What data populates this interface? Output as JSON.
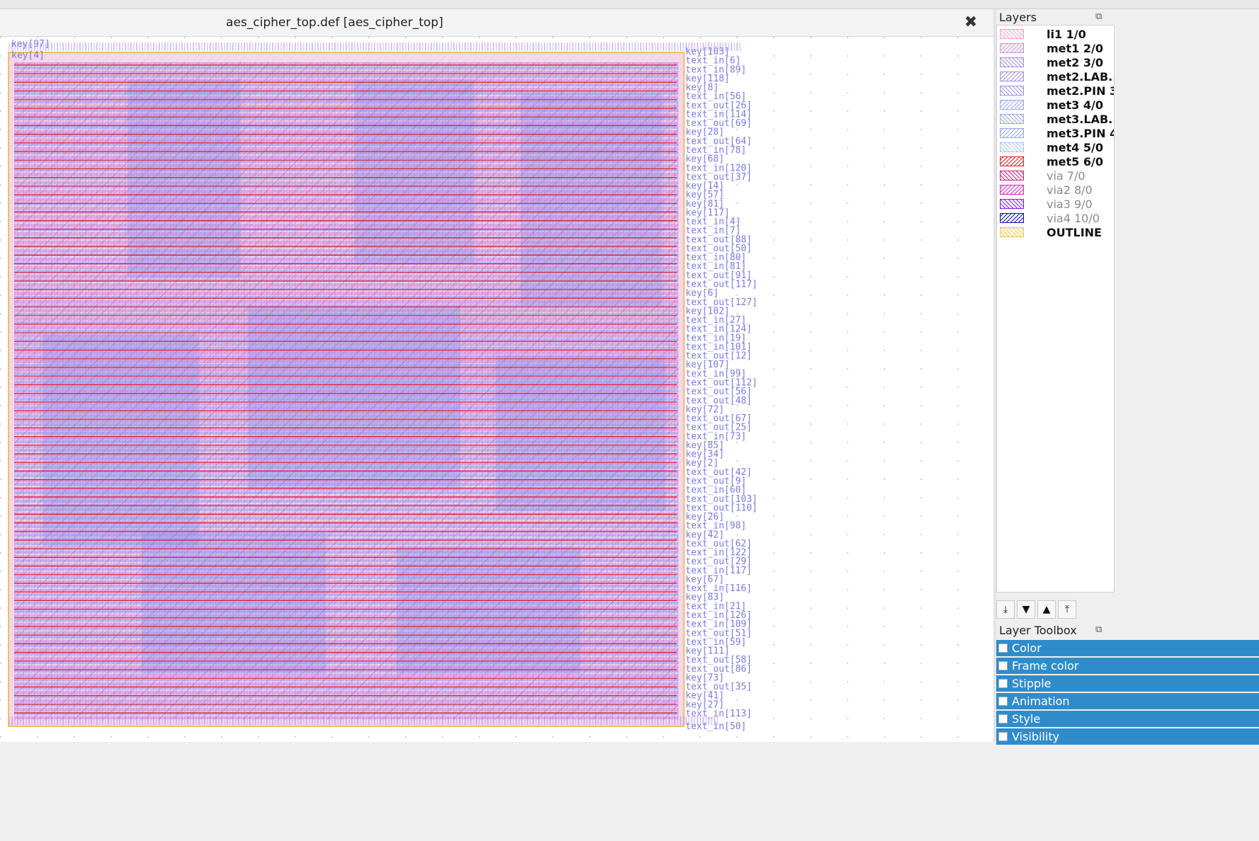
{
  "view": {
    "title": "aes_cipher_top.def [aes_cipher_top]",
    "close_icon": "close-icon",
    "top_labels": [
      "key[97]",
      "key[4]"
    ],
    "bottom_label": "text_in[50]",
    "pin_labels": [
      "key[103]",
      "text_in[6]",
      "text_in[89]",
      "key[118]",
      "key[8]",
      "text_in[56]",
      "text_out[26]",
      "text_in[114]",
      "text_out[69]",
      "key[28]",
      "text_out[64]",
      "text_in[78]",
      "key[68]",
      "text_in[120]",
      "text_out[37]",
      "key[14]",
      "key[57]",
      "key[81]",
      "key[117]",
      "text_in[4]",
      "text_in[7]",
      "text_out[88]",
      "text_out[50]",
      "text_in[80]",
      "text_in[81]",
      "text_out[91]",
      "text_out[117]",
      "key[6]",
      "text_out[127]",
      "key[102]",
      "text_in[27]",
      "text_in[124]",
      "text_in[19]",
      "text_in[101]",
      "text_out[12]",
      "key[107]",
      "text_in[99]",
      "text_out[112]",
      "text_out[56]",
      "text_out[48]",
      "key[72]",
      "text_out[67]",
      "text_out[25]",
      "text_in[73]",
      "key[85]",
      "key[34]",
      "key[2]",
      "text_out[42]",
      "text_out[9]",
      "text_in[60]",
      "text_out[103]",
      "text_out[110]",
      "key[26]",
      "text_in[98]",
      "key[42]",
      "text_out[62]",
      "text_in[122]",
      "text_out[29]",
      "text_in[117]",
      "key[67]",
      "text_in[116]",
      "key[83]",
      "text_in[21]",
      "text_in[126]",
      "text_in[109]",
      "text_out[51]",
      "text_in[59]",
      "key[111]",
      "text_out[58]",
      "text_out[86]",
      "key[73]",
      "text_out[35]",
      "key[41]",
      "key[27]",
      "text_in[113]"
    ]
  },
  "layers_panel": {
    "title": "Layers",
    "icons": [
      "float-icon",
      "close-icon"
    ],
    "layers": [
      {
        "name": "li1 1/0",
        "bold": true,
        "color": "#f0a0c8",
        "pattern": "diag"
      },
      {
        "name": "met1 2/0",
        "bold": true,
        "color": "#c890e8",
        "pattern": "back"
      },
      {
        "name": "met2 3/0",
        "bold": true,
        "color": "#a090e8",
        "pattern": "diag"
      },
      {
        "name": "met2.LAB...",
        "bold": true,
        "color": "#a090e8",
        "pattern": "back"
      },
      {
        "name": "met2.PIN 3",
        "bold": true,
        "color": "#a090e8",
        "pattern": "diag"
      },
      {
        "name": "met3 4/0",
        "bold": true,
        "color": "#98a8e8",
        "pattern": "back"
      },
      {
        "name": "met3.LAB...",
        "bold": true,
        "color": "#98a8e8",
        "pattern": "diag"
      },
      {
        "name": "met3.PIN 4",
        "bold": true,
        "color": "#98a8e8",
        "pattern": "back"
      },
      {
        "name": "met4 5/0",
        "bold": true,
        "color": "#a8c8f0",
        "pattern": "diag"
      },
      {
        "name": "met5 6/0",
        "bold": true,
        "color": "#e02020",
        "pattern": "back"
      },
      {
        "name": "via 7/0",
        "bold": false,
        "color": "#d02070",
        "pattern": "diag"
      },
      {
        "name": "via2 8/0",
        "bold": false,
        "color": "#e020d0",
        "pattern": "back"
      },
      {
        "name": "via3 9/0",
        "bold": false,
        "color": "#8020d0",
        "pattern": "diag"
      },
      {
        "name": "via4 10/0",
        "bold": false,
        "color": "#1010c0",
        "pattern": "back"
      },
      {
        "name": "OUTLINE",
        "bold": true,
        "color": "#f0c050",
        "pattern": "diag"
      }
    ],
    "toolbar": [
      "move-to-bottom-icon",
      "move-down-icon",
      "move-up-icon",
      "move-to-top-icon"
    ]
  },
  "layer_toolbox": {
    "title": "Layer Toolbox",
    "items": [
      "Color",
      "Frame color",
      "Stipple",
      "Animation",
      "Style",
      "Visibility"
    ]
  }
}
